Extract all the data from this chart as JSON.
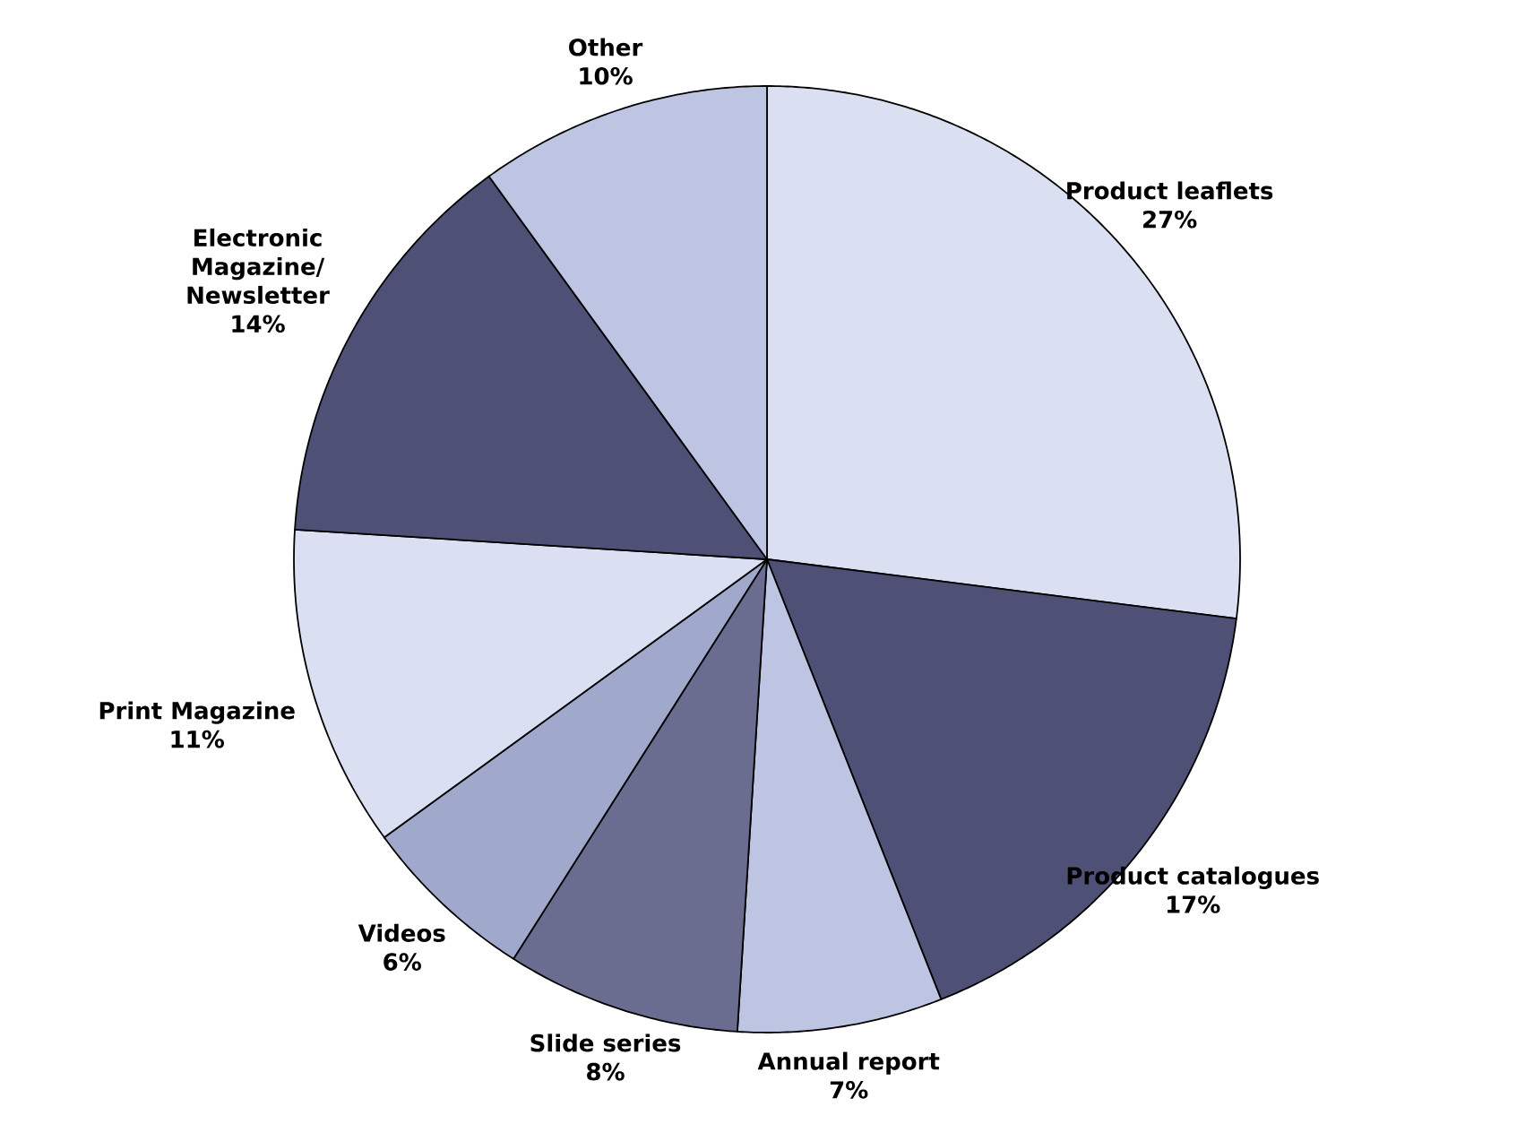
{
  "chart_data": {
    "type": "pie",
    "categories": [
      "Product leaflets",
      "Product catalogues",
      "Annual report",
      "Slide series",
      "Videos",
      "Print Magazine",
      "Electronic Magazine/ Newsletter",
      "Other"
    ],
    "values": [
      27,
      17,
      7,
      8,
      6,
      11,
      14,
      10
    ],
    "value_labels": [
      "27%",
      "17%",
      "7%",
      "8%",
      "6%",
      "11%",
      "14%",
      "10%"
    ],
    "colors": [
      "#dadff2",
      "#4f5076",
      "#bec5e2",
      "#6a6c90",
      "#a0a9cc",
      "#dadff2",
      "#4f5076",
      "#bec5e2"
    ]
  }
}
